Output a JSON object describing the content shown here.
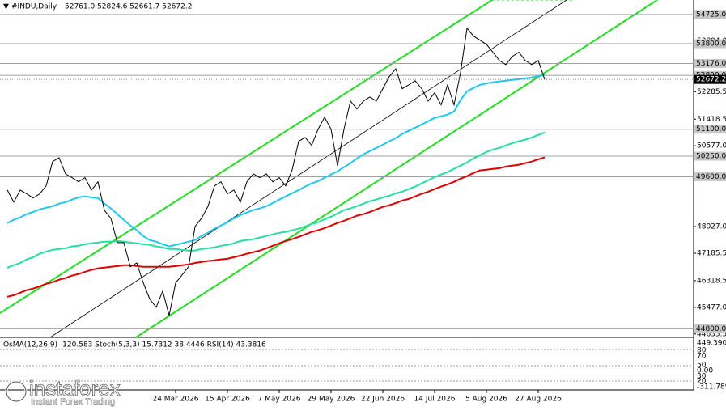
{
  "chart_data": {
    "type": "line",
    "title": "#INDU,Daily",
    "subtitle": "52761.0 52824.6 52661.7 52672.2",
    "categories": [
      null,
      null,
      null,
      null,
      null,
      null,
      null,
      null,
      null,
      null,
      null,
      null,
      null,
      null,
      null,
      null,
      null,
      null,
      null,
      null,
      null,
      null,
      null,
      null,
      null,
      null,
      "24 Mar 2026",
      null,
      null,
      null,
      null,
      null,
      null,
      null,
      "15 Apr 2026",
      null,
      null,
      null,
      null,
      null,
      null,
      null,
      "7 May 2026",
      null,
      null,
      null,
      null,
      null,
      null,
      null,
      "29 May 2026",
      null,
      null,
      null,
      null,
      null,
      null,
      null,
      "22 Jun 2026",
      null,
      null,
      null,
      null,
      null,
      null,
      null,
      "14 Jul 2026",
      null,
      null,
      null,
      null,
      null,
      null,
      null,
      "5 Aug 2026",
      null,
      null,
      null,
      null,
      null,
      null,
      null,
      "27 Aug 2026",
      null
    ],
    "series": [
      {
        "color": "#000000",
        "values": [
          49180,
          48800,
          49180,
          49060,
          48930,
          49060,
          49310,
          50080,
          50200,
          49690,
          49570,
          49440,
          49570,
          49180,
          49440,
          48540,
          48290,
          47520,
          47520,
          46760,
          46880,
          46250,
          45740,
          45480,
          45990,
          45220,
          46250,
          46500,
          46760,
          48030,
          48290,
          48670,
          49310,
          49440,
          49060,
          49180,
          48800,
          49440,
          49690,
          49570,
          49690,
          49440,
          49570,
          49310,
          49820,
          50720,
          50840,
          50590,
          51100,
          51480,
          51100,
          49950,
          51100,
          51990,
          51740,
          51990,
          52120,
          51990,
          52380,
          52760,
          53010,
          52380,
          52500,
          52630,
          52380,
          51990,
          52250,
          51870,
          52500,
          51870,
          52890,
          54290,
          54040,
          53910,
          53780,
          53530,
          53270,
          53140,
          53400,
          53530,
          53270,
          53140,
          53270,
          52672.2
        ]
      },
      {
        "color": "#1ec8f0",
        "values": [
          48140,
          48240,
          48320,
          48420,
          48490,
          48570,
          48620,
          48670,
          48750,
          48800,
          48880,
          48950,
          48980,
          48950,
          48930,
          48750,
          48600,
          48420,
          48240,
          48060,
          47910,
          47730,
          47600,
          47550,
          47470,
          47400,
          47450,
          47500,
          47550,
          47600,
          47730,
          47830,
          47960,
          48060,
          48160,
          48290,
          48390,
          48470,
          48550,
          48600,
          48670,
          48770,
          48880,
          48980,
          49080,
          49180,
          49290,
          49390,
          49460,
          49570,
          49670,
          49770,
          49900,
          50030,
          50180,
          50310,
          50410,
          50510,
          50610,
          50720,
          50820,
          50950,
          51050,
          51150,
          51250,
          51350,
          51460,
          51510,
          51560,
          51660,
          52020,
          52300,
          52400,
          52500,
          52550,
          52580,
          52610,
          52630,
          52660,
          52680,
          52710,
          52730,
          52780,
          52810
        ]
      },
      {
        "color": "#24e0a0",
        "values": [
          46730,
          46810,
          46880,
          46990,
          47060,
          47170,
          47240,
          47290,
          47320,
          47340,
          47400,
          47420,
          47470,
          47500,
          47520,
          47550,
          47550,
          47570,
          47550,
          47520,
          47500,
          47470,
          47450,
          47400,
          47370,
          47320,
          47320,
          47290,
          47270,
          47270,
          47320,
          47340,
          47370,
          47420,
          47450,
          47500,
          47570,
          47600,
          47630,
          47680,
          47730,
          47780,
          47830,
          47860,
          47910,
          47960,
          48030,
          48110,
          48160,
          48260,
          48340,
          48440,
          48550,
          48600,
          48670,
          48750,
          48830,
          48880,
          48950,
          49000,
          49080,
          49130,
          49210,
          49290,
          49390,
          49490,
          49590,
          49670,
          49750,
          49850,
          49950,
          50050,
          50180,
          50280,
          50380,
          50460,
          50510,
          50590,
          50660,
          50720,
          50770,
          50840,
          50920,
          51000
        ]
      },
      {
        "color": "#e00000",
        "values": [
          45810,
          45860,
          45940,
          46020,
          46070,
          46140,
          46220,
          46270,
          46350,
          46400,
          46480,
          46530,
          46600,
          46660,
          46710,
          46730,
          46760,
          46780,
          46810,
          46810,
          46780,
          46760,
          46760,
          46760,
          46760,
          46760,
          46780,
          46810,
          46830,
          46880,
          46910,
          46940,
          46960,
          46990,
          47010,
          47060,
          47110,
          47170,
          47220,
          47270,
          47340,
          47420,
          47500,
          47570,
          47630,
          47700,
          47780,
          47860,
          47910,
          47980,
          48060,
          48140,
          48210,
          48290,
          48370,
          48420,
          48490,
          48570,
          48650,
          48700,
          48770,
          48850,
          48900,
          48980,
          49060,
          49130,
          49210,
          49290,
          49360,
          49440,
          49540,
          49620,
          49720,
          49800,
          49820,
          49850,
          49870,
          49920,
          49950,
          49980,
          50030,
          50080,
          50150,
          50210
        ]
      }
    ],
    "ylim": [
      44580,
      55180
    ],
    "yticks": [
      {
        "value": 53894,
        "label": "53894.0"
      },
      {
        "value": 52285.5,
        "label": "52285.5"
      },
      {
        "value": 51418.5,
        "label": "51418.5"
      },
      {
        "value": 50577,
        "label": "50577.0"
      },
      {
        "value": 48027,
        "label": "48027.0"
      },
      {
        "value": 47185.5,
        "label": "47185.5"
      },
      {
        "value": 46318.5,
        "label": "46318.5"
      },
      {
        "value": 45477,
        "label": "45477.0"
      },
      {
        "value": 44635.5,
        "label": "44635.5"
      }
    ],
    "levels": [
      {
        "value": 54725,
        "label": "54725.0"
      },
      {
        "value": 53800,
        "label": "53800.0"
      },
      {
        "value": 53176,
        "label": "53176.0"
      },
      {
        "value": 52800,
        "label": "52800.0"
      },
      {
        "value": 51100,
        "label": "51100.0"
      },
      {
        "value": 50250,
        "label": "50250.0"
      },
      {
        "value": 49600,
        "label": "49600.0"
      },
      {
        "value": 44800,
        "label": "44800.0"
      }
    ],
    "last_price": {
      "value": 52672.2,
      "label": "52672.2"
    },
    "indicator_label": "OsMA(12,26,9) -120.583  Stoch(5,3,3) 15.7312 38.4446  RSI(14) 43.3816",
    "indicator_axis_labels": [
      "449.390",
      "80",
      "70",
      "50",
      "0.00",
      "30",
      "20",
      "-311.789"
    ],
    "watermark": "instaforex",
    "watermark_sub": "Instant Forex Trading"
  }
}
